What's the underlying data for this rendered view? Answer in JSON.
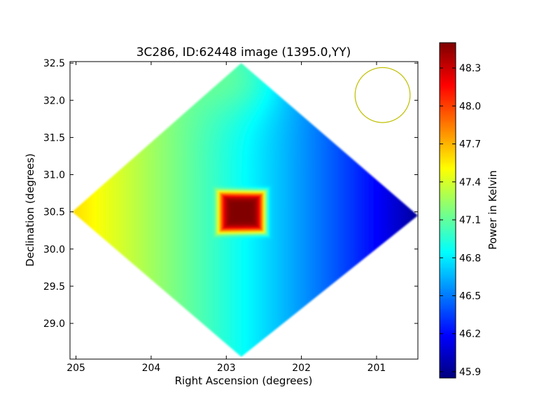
{
  "chart_data": {
    "type": "heatmap",
    "title": "3C286, ID:62448 image (1395.0,YY)",
    "xlabel": "Right Ascension (degrees)",
    "ylabel": "Declination (degrees)",
    "colorbar_label": "Power in Kelvin",
    "colormap": "jet",
    "xlim": [
      205.08,
      200.45
    ],
    "ylim": [
      28.52,
      32.52
    ],
    "x_axis_inverted": true,
    "x_ticks": [
      "205",
      "204",
      "203",
      "202",
      "201"
    ],
    "x_tick_values": [
      205,
      204,
      203,
      202,
      201
    ],
    "y_ticks": [
      "29.0",
      "29.5",
      "30.0",
      "30.5",
      "31.0",
      "31.5",
      "32.0",
      "32.5"
    ],
    "y_tick_values": [
      29.0,
      29.5,
      30.0,
      30.5,
      31.0,
      31.5,
      32.0,
      32.5
    ],
    "colorbar_range": [
      45.85,
      48.5
    ],
    "colorbar_ticks": [
      "45.9",
      "46.2",
      "46.5",
      "46.8",
      "47.1",
      "47.4",
      "47.7",
      "48.0",
      "48.3"
    ],
    "colorbar_tick_values": [
      45.9,
      46.2,
      46.5,
      46.8,
      47.1,
      47.4,
      47.7,
      48.0,
      48.3
    ],
    "coverage_region": {
      "shape": "diamond",
      "vertices": [
        {
          "ra": 202.8,
          "dec": 32.5
        },
        {
          "ra": 200.45,
          "dec": 30.45
        },
        {
          "ra": 202.8,
          "dec": 28.55
        },
        {
          "ra": 205.05,
          "dec": 30.5
        }
      ]
    },
    "peak": {
      "ra": 202.8,
      "dec": 30.5,
      "value": 48.5,
      "halfwidth_ra": 0.3,
      "halfwidth_dec": 0.27
    },
    "field_gradient": {
      "west_low": 45.9,
      "east_high": 47.6
    },
    "beam_circle": {
      "ra": 200.92,
      "dec": 32.07,
      "radius_dec": 0.37,
      "color": "#bfbf00"
    }
  }
}
